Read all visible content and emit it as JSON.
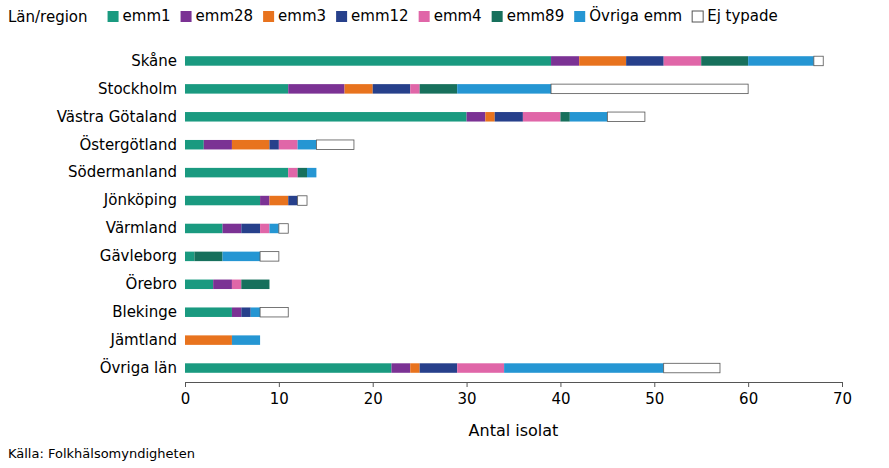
{
  "chart_data": {
    "type": "bar",
    "orientation": "horizontal",
    "stacked": true,
    "legend": "top",
    "ylabel": "Län/region",
    "xlabel": "Antal isolat",
    "annotations": [
      "Källa: Folkhälsomyndigheten"
    ],
    "categories": [
      "Skåne",
      "Stockholm",
      "Västra Götaland",
      "Östergötland",
      "Södermanland",
      "Jönköping",
      "Värmland",
      "Gävleborg",
      "Örebro",
      "Blekinge",
      "Jämtland",
      "Övriga län"
    ],
    "series": [
      {
        "name": "emm1",
        "color": "#1a9a80",
        "values": [
          39,
          11,
          30,
          2,
          11,
          8,
          4,
          1,
          3,
          5,
          0,
          22
        ]
      },
      {
        "name": "emm28",
        "color": "#7b3294",
        "values": [
          3,
          6,
          2,
          3,
          0,
          1,
          2,
          0,
          2,
          1,
          0,
          2
        ]
      },
      {
        "name": "emm3",
        "color": "#e8731e",
        "values": [
          5,
          3,
          1,
          4,
          0,
          2,
          0,
          0,
          0,
          0,
          5,
          1
        ]
      },
      {
        "name": "emm12",
        "color": "#27408b",
        "values": [
          4,
          4,
          3,
          1,
          0,
          1,
          2,
          0,
          0,
          1,
          0,
          4
        ]
      },
      {
        "name": "emm4",
        "color": "#e066a8",
        "values": [
          4,
          1,
          4,
          2,
          1,
          0,
          1,
          0,
          1,
          0,
          0,
          5
        ]
      },
      {
        "name": "emm89",
        "color": "#17705c",
        "values": [
          5,
          4,
          1,
          0,
          1,
          0,
          0,
          3,
          3,
          0,
          0,
          0
        ]
      },
      {
        "name": "Övriga emm",
        "color": "#2596d3",
        "values": [
          7,
          10,
          4,
          2,
          1,
          0,
          1,
          4,
          0,
          1,
          3,
          17
        ]
      },
      {
        "name": "Ej typade",
        "color": "#ffffff",
        "values": [
          1,
          21,
          4,
          4,
          0,
          1,
          1,
          2,
          0,
          3,
          0,
          6
        ]
      }
    ],
    "xlim": [
      0,
      70
    ],
    "xticks": [
      0,
      10,
      20,
      30,
      40,
      50,
      60,
      70
    ],
    "grid": false
  }
}
